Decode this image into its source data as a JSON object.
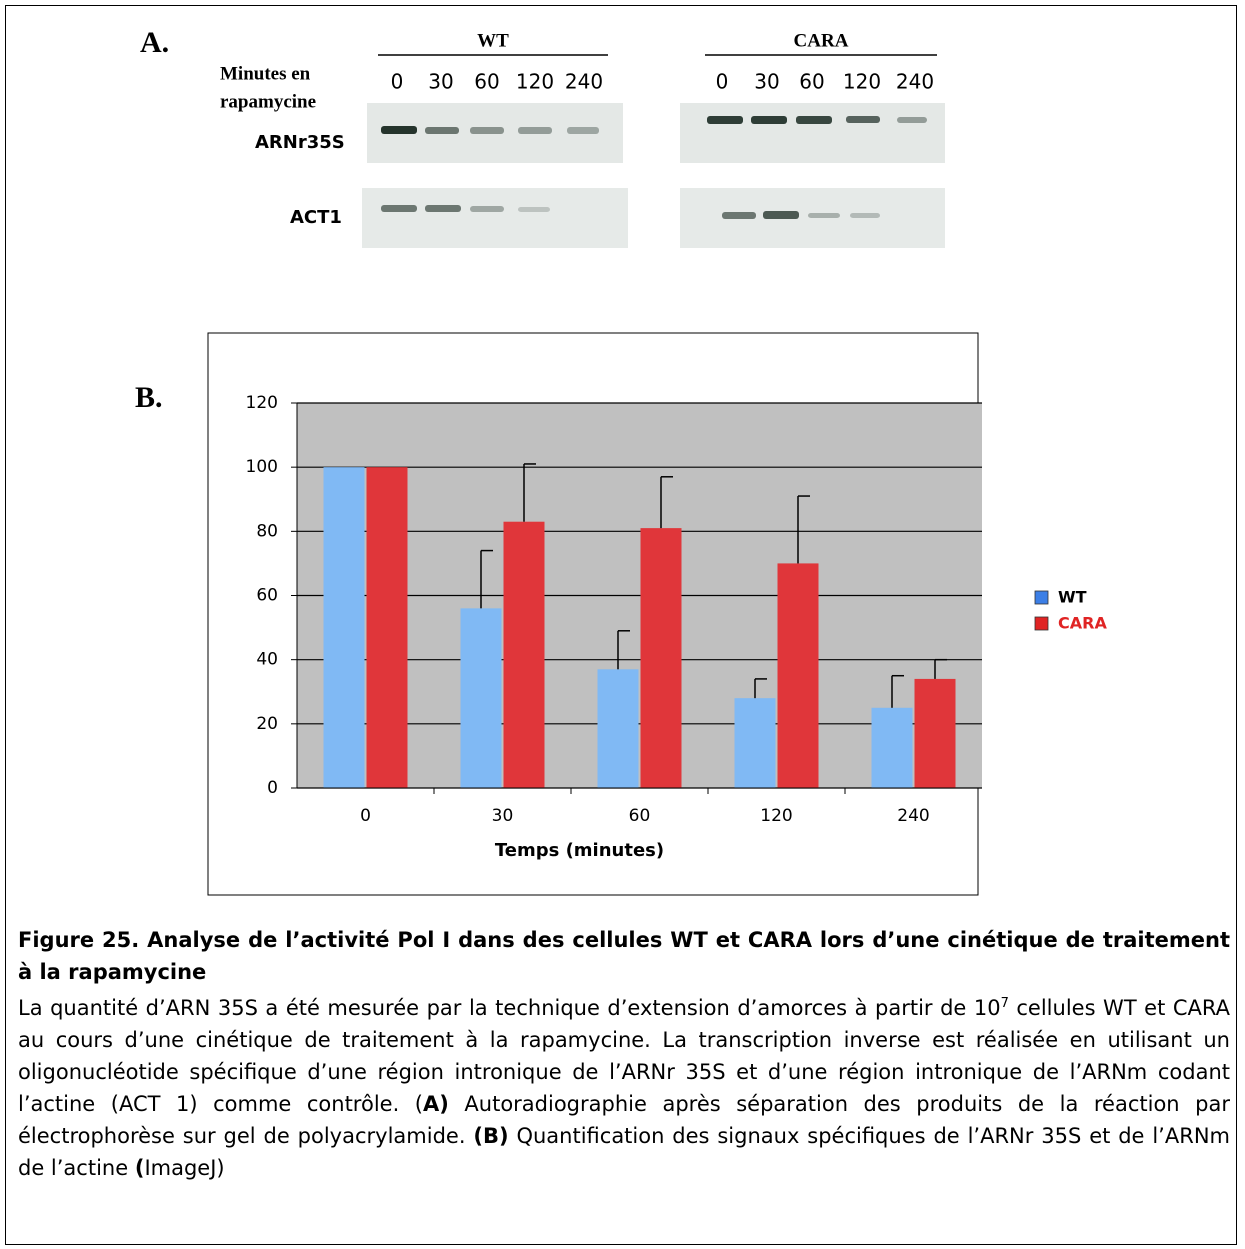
{
  "panel_a": {
    "letter": "A.",
    "minutes_label": [
      "Minutes en",
      "rapamycine"
    ],
    "groups": [
      {
        "label": "WT",
        "lanes": [
          "0",
          "30",
          "60",
          "120",
          "240"
        ]
      },
      {
        "label": "CARA",
        "lanes": [
          "0",
          "30",
          "60",
          "120",
          "240"
        ]
      }
    ],
    "rows": [
      "ARNr35S",
      "ACT1"
    ]
  },
  "panel_b_letter": "B.",
  "chart_data": {
    "type": "bar",
    "x_label": "Temps (minutes)",
    "categories": [
      "0",
      "30",
      "60",
      "120",
      "240"
    ],
    "series": [
      {
        "name": "WT",
        "color": "#80b9f4",
        "legend_color": "#3c7fe6",
        "values": [
          100,
          56,
          37,
          28,
          25
        ],
        "errors": [
          null,
          18,
          12,
          6,
          10
        ]
      },
      {
        "name": "CARA",
        "color": "#e0363a",
        "legend_color": "#e02424",
        "values": [
          100,
          83,
          81,
          70,
          34
        ],
        "errors": [
          null,
          18,
          16,
          21,
          6
        ]
      }
    ],
    "ylim": [
      0,
      120
    ],
    "yticks": [
      0,
      20,
      40,
      60,
      80,
      100,
      120
    ],
    "grid": true,
    "legend": "right"
  },
  "caption": {
    "title": "Figure 25. Analyse de l’activité Pol I dans des cellules WT et CARA lors d’une cinétique de traitement à la rapamycine",
    "body": [
      "La quantité d’ARN 35S a été mesurée par la technique d’extension d’amorces à partir de 10",
      "7",
      " cellules WT et CARA au cours d’une cinétique de traitement à la rapamycine. La transcription inverse est réalisée en utilisant un oligonucléotide spécifique d’une région intronique de l’ARNr 35S et d’une région intronique de l’ARNm codant l’actine (ACT 1) comme contrôle. (",
      "A)",
      " Autoradiographie après séparation des produits de la réaction par électrophorèse sur gel de polyacrylamide. ",
      "(B)",
      " Quantification des signaux spécifiques de l’ARNr 35S et de l’ARNm de l’actine ",
      "(",
      "ImageJ)"
    ]
  }
}
